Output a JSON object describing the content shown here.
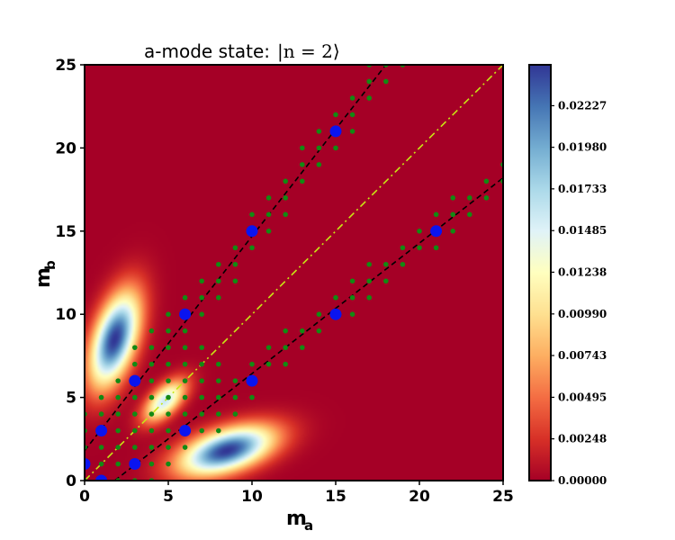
{
  "chart_data": {
    "type": "heatmap",
    "title": "a-mode state:",
    "title_math": "|n = 2⟩",
    "xlabel": "m",
    "xlabel_sub": "a",
    "ylabel": "m",
    "ylabel_sub": "b",
    "xlim": [
      0,
      25
    ],
    "ylim": [
      0,
      25
    ],
    "x_ticks": [
      0,
      5,
      10,
      15,
      20,
      25
    ],
    "y_ticks": [
      0,
      5,
      10,
      15,
      20,
      25
    ],
    "colormap": "RdYlBu",
    "colorbar": {
      "min": 0.0,
      "max": 0.0247,
      "ticks": [
        "0.00000",
        "0.00248",
        "0.00495",
        "0.00743",
        "0.00990",
        "0.01238",
        "0.01485",
        "0.01733",
        "0.01980",
        "0.02227"
      ]
    },
    "heatmap_peaks": [
      {
        "x": 1.8,
        "y": 8.5,
        "value": 0.0247
      },
      {
        "x": 4.8,
        "y": 4.8,
        "value": 0.0158
      },
      {
        "x": 8.5,
        "y": 1.8,
        "value": 0.0247
      }
    ],
    "blue_points": [
      [
        0,
        1
      ],
      [
        1,
        0
      ],
      [
        1,
        3
      ],
      [
        3,
        1
      ],
      [
        3,
        6
      ],
      [
        6,
        3
      ],
      [
        6,
        10
      ],
      [
        10,
        6
      ],
      [
        10,
        15
      ],
      [
        15,
        10
      ],
      [
        15,
        21
      ],
      [
        21,
        15
      ]
    ],
    "dashed_lines_black": [
      {
        "from": [
          0,
          1.8
        ],
        "to": [
          18,
          25
        ]
      },
      {
        "from": [
          1.8,
          0
        ],
        "to": [
          25,
          18.2
        ]
      }
    ],
    "dashdot_line_yellow": {
      "from": [
        0,
        0
      ],
      "to": [
        25,
        25
      ]
    },
    "green_points_note": "small green markers scattered along the two dashed lines"
  },
  "colors": {
    "low": "#a50026",
    "high": "#313695",
    "blue_points": "#0a14f0",
    "green_points": "#138a13",
    "diagonal": "#c8e614"
  }
}
